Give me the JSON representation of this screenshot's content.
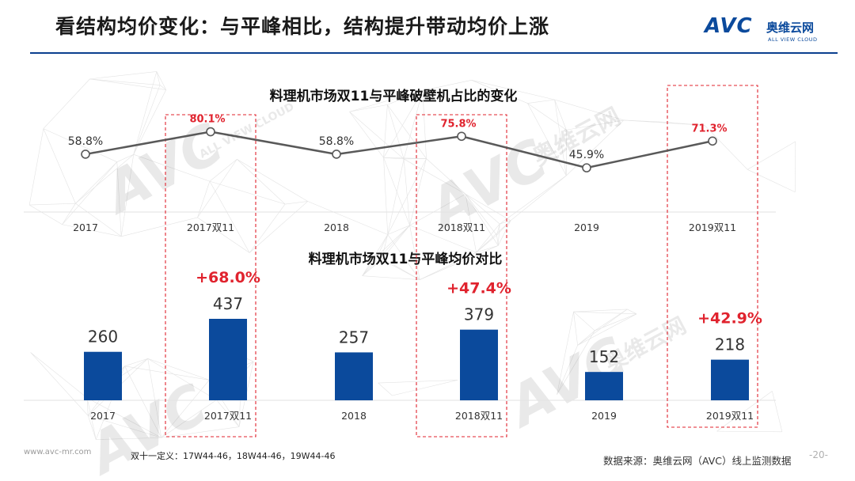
{
  "header": {
    "title": "看结构均价变化：与平峰相比，结构提升带动均价上涨",
    "brand_logo": "AVC",
    "brand_cn": "奥维云网",
    "brand_en": "ALL VIEW CLOUD"
  },
  "watermark": {
    "logo": "AVC",
    "tagline": "ALL VIEW CLOUD",
    "cn": "奥维云网"
  },
  "colors": {
    "accent": "#0b3f8f",
    "bar": "#0b4a9c",
    "line": "#595959",
    "highlight": "#e0232e",
    "box": "#e0232e"
  },
  "chart_data": [
    {
      "type": "line",
      "title": "料理机市场双11与平峰破壁机占比的变化",
      "categories": [
        "2017",
        "2017双11",
        "2018",
        "2018双11",
        "2019",
        "2019双11"
      ],
      "values": [
        58.8,
        80.1,
        58.8,
        75.8,
        45.9,
        71.3
      ],
      "labels": [
        "58.8%",
        "80.1%",
        "58.8%",
        "75.8%",
        "45.9%",
        "71.3%"
      ],
      "highlight": [
        false,
        true,
        false,
        true,
        false,
        true
      ],
      "unit": "%"
    },
    {
      "type": "bar",
      "title": "料理机市场双11与平峰均价对比",
      "categories": [
        "2017",
        "2017双11",
        "2018",
        "2018双11",
        "2019",
        "2019双11"
      ],
      "values": [
        260,
        437,
        257,
        379,
        152,
        218
      ],
      "increase_labels": [
        "+68.0%",
        "+47.4%",
        "+42.9%"
      ],
      "increase_for": [
        "2017双11",
        "2018双11",
        "2019双11"
      ]
    }
  ],
  "footer": {
    "url": "www.avc-mr.com",
    "note": "双十一定义：17W44-46，18W44-46，19W44-46",
    "source": "数据来源：奥维云网（AVC）线上监测数据",
    "page": "-20-"
  }
}
